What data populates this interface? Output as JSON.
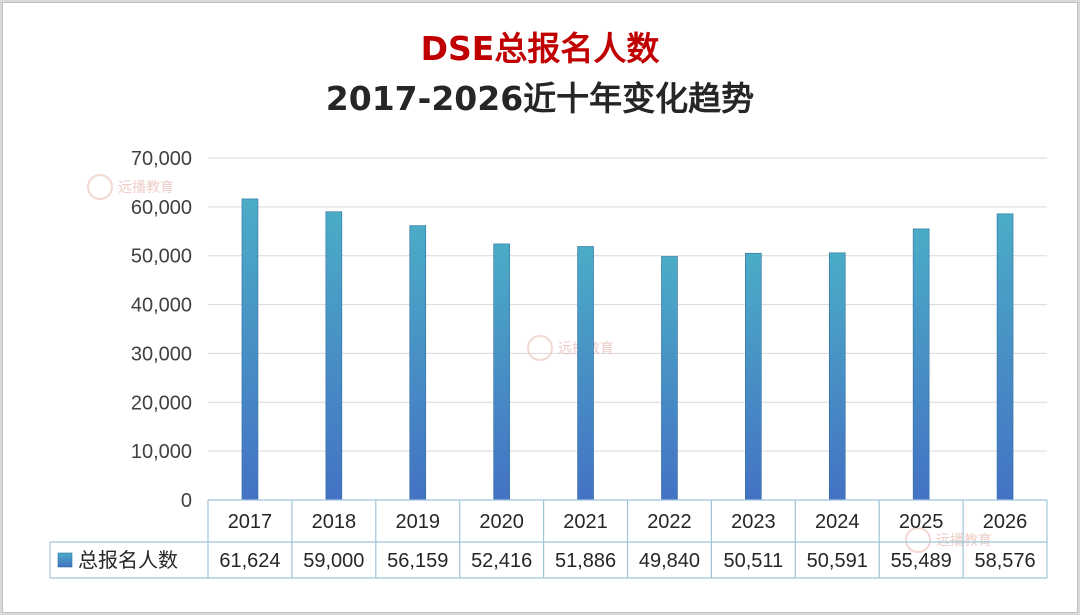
{
  "chart_data": {
    "type": "bar",
    "title": "DSE总报名人数",
    "subtitle": "2017-2026近十年变化趋势",
    "categories": [
      "2017",
      "2018",
      "2019",
      "2020",
      "2021",
      "2022",
      "2023",
      "2024",
      "2025",
      "2026"
    ],
    "series": [
      {
        "name": "总报名人数",
        "values": [
          61624,
          59000,
          56159,
          52416,
          51886,
          49840,
          50511,
          50591,
          55489,
          58576
        ],
        "value_labels": [
          "61,624",
          "59,000",
          "56,159",
          "52,416",
          "51,886",
          "49,840",
          "50,511",
          "50,591",
          "55,489",
          "58,576"
        ]
      }
    ],
    "ylim": [
      0,
      70000
    ],
    "yticks": [
      0,
      10000,
      20000,
      30000,
      40000,
      50000,
      60000,
      70000
    ],
    "ytick_labels": [
      "0",
      "10,000",
      "20,000",
      "30,000",
      "40,000",
      "50,000",
      "60,000",
      "70,000"
    ],
    "grid": true,
    "data_table": true
  },
  "watermark": {
    "text": "远播教育"
  },
  "colors": {
    "title": "#c00000",
    "subtitle": "#262626",
    "bar_top": "#4bacc6",
    "bar_bottom": "#4472c4",
    "grid": "#d9d9d9"
  }
}
